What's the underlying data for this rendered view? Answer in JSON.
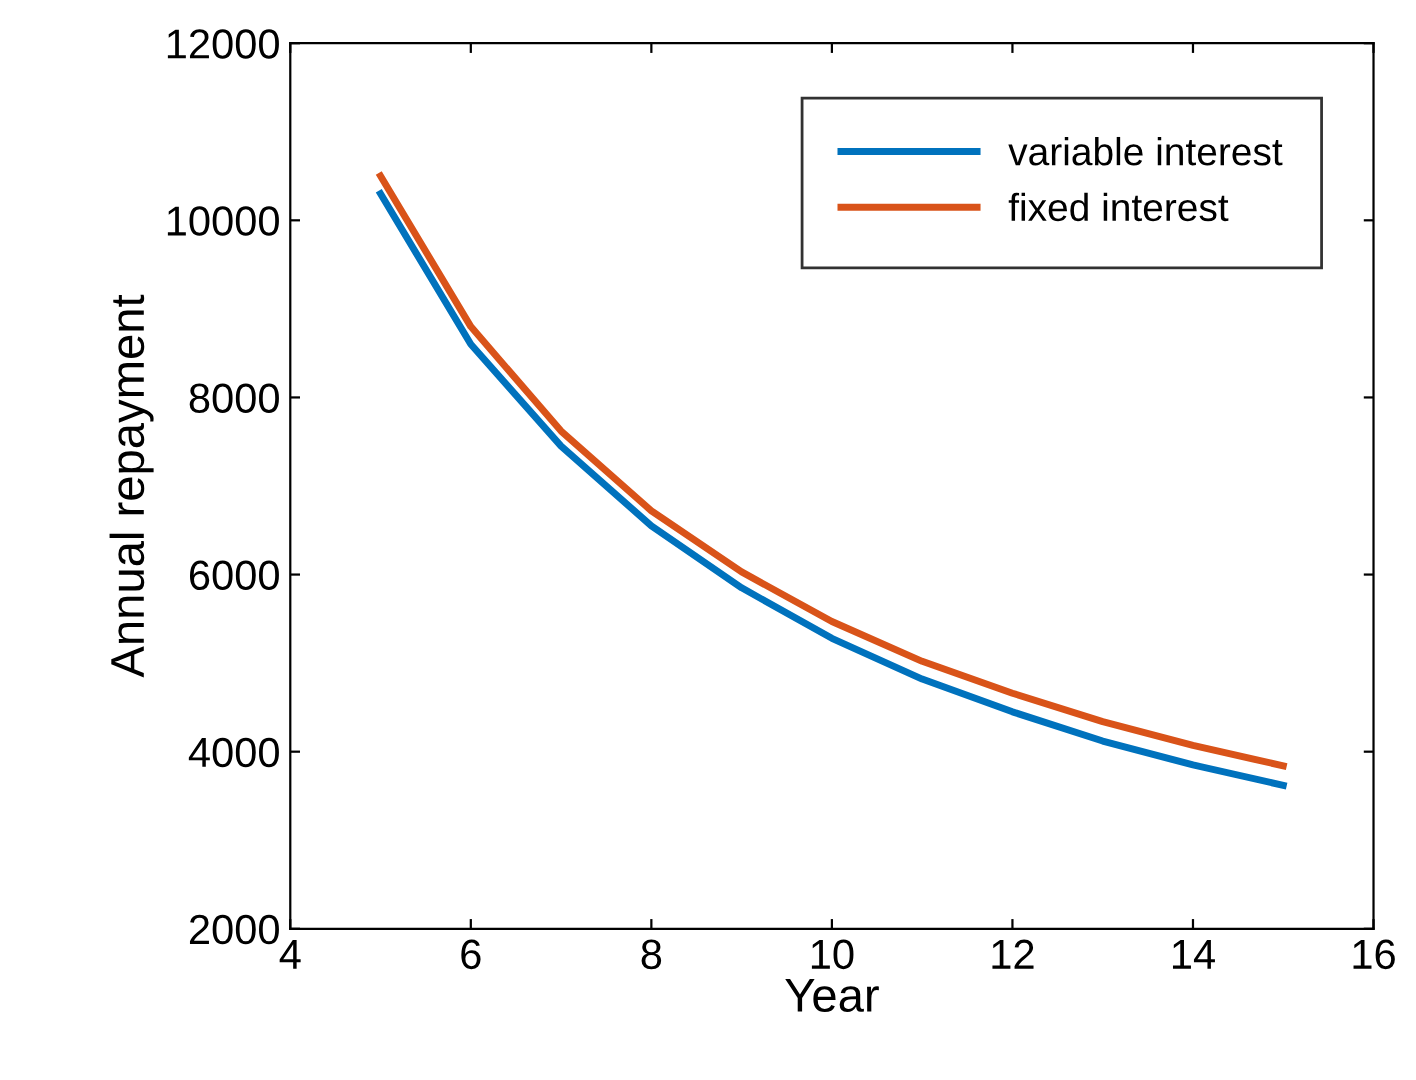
{
  "chart_data": {
    "type": "line",
    "xlabel": "Year",
    "ylabel": "Annual repayment",
    "x": [
      5,
      6,
      7,
      8,
      9,
      10,
      11,
      12,
      13,
      14,
      15
    ],
    "series": [
      {
        "name": "variable interest",
        "color": "#0072bd",
        "values": [
          10300,
          8600,
          7450,
          6550,
          5850,
          5280,
          4820,
          4450,
          4120,
          3850,
          3620
        ]
      },
      {
        "name": "fixed interest",
        "color": "#d95319",
        "values": [
          10500,
          8800,
          7620,
          6720,
          6030,
          5470,
          5020,
          4660,
          4340,
          4070,
          3840
        ]
      }
    ],
    "xlim": [
      4,
      16
    ],
    "xticks": [
      4,
      6,
      8,
      10,
      12,
      14,
      16
    ],
    "ylim": [
      2000,
      12000
    ],
    "yticks": [
      2000,
      4000,
      6000,
      8000,
      10000,
      12000
    ],
    "legend": "top right",
    "grid": false,
    "marker": "none",
    "line_style": "solid"
  }
}
